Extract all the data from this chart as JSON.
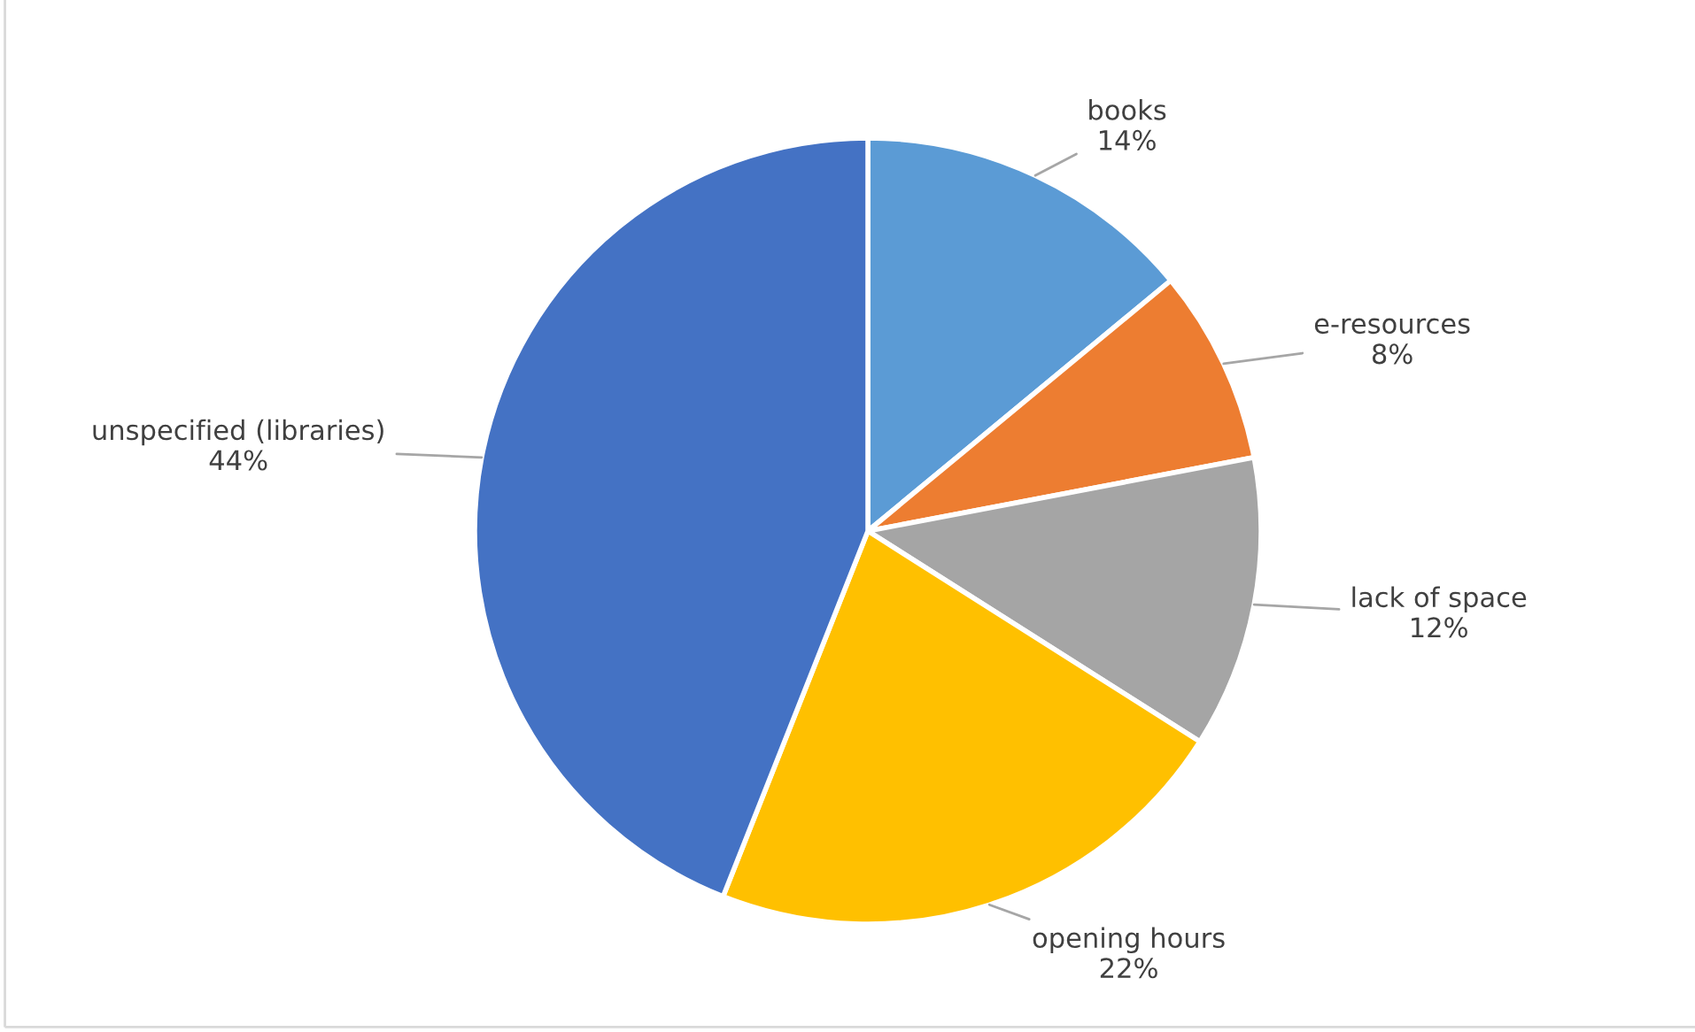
{
  "chart_data": {
    "type": "pie",
    "categories": [
      "books",
      "e-resources",
      "lack of space",
      "opening hours",
      "unspecified (libraries)"
    ],
    "values": [
      14,
      8,
      12,
      22,
      44
    ],
    "colors": [
      "#5b9bd5",
      "#ed7d31",
      "#a5a5a5",
      "#ffc000",
      "#4472c4"
    ],
    "value_labels": [
      "14%",
      "8%",
      "12%",
      "22%",
      "44%"
    ]
  }
}
